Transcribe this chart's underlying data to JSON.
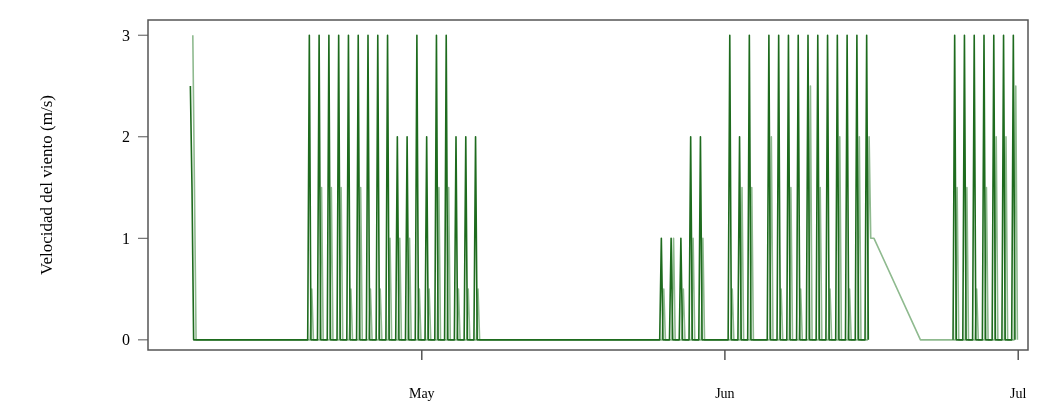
{
  "chart_data": {
    "type": "line",
    "ylabel": "Velocidad del viento (m/s)",
    "x": [
      "--04-07T08:00",
      "--04-07T12:00",
      "--04-07T16:00",
      "--04-19T08:00",
      "--04-19T12:00",
      "--04-19T16:00",
      "--04-20T08:00",
      "--04-20T12:00",
      "--04-20T16:00",
      "--04-21T08:00",
      "--04-21T12:00",
      "--04-21T16:00",
      "--04-22T08:00",
      "--04-22T12:00",
      "--04-22T16:00",
      "--04-23T08:00",
      "--04-23T12:00",
      "--04-23T16:00",
      "--04-24T08:00",
      "--04-24T12:00",
      "--04-24T16:00",
      "--04-25T08:00",
      "--04-25T12:00",
      "--04-25T16:00",
      "--04-26T08:00",
      "--04-26T12:00",
      "--04-26T16:00",
      "--04-27T08:00",
      "--04-27T12:00",
      "--04-27T16:00",
      "--04-28T08:00",
      "--04-28T12:00",
      "--04-28T16:00",
      "--04-29T08:00",
      "--04-29T12:00",
      "--04-29T16:00",
      "--04-30T08:00",
      "--04-30T12:00",
      "--04-30T16:00",
      "--05-01T08:00",
      "--05-01T12:00",
      "--05-01T16:00",
      "--05-02T08:00",
      "--05-02T12:00",
      "--05-02T16:00",
      "--05-03T08:00",
      "--05-03T12:00",
      "--05-03T16:00",
      "--05-04T08:00",
      "--05-04T12:00",
      "--05-04T16:00",
      "--05-05T08:00",
      "--05-05T12:00",
      "--05-05T16:00",
      "--05-06T08:00",
      "--05-06T12:00",
      "--05-06T16:00",
      "--05-25T08:00",
      "--05-25T12:00",
      "--05-25T16:00",
      "--05-26T08:00",
      "--05-26T12:00",
      "--05-26T16:00",
      "--05-27T08:00",
      "--05-27T12:00",
      "--05-27T16:00",
      "--05-28T08:00",
      "--05-28T12:00",
      "--05-28T16:00",
      "--05-29T08:00",
      "--05-29T12:00",
      "--05-29T16:00",
      "--06-01T08:00",
      "--06-01T12:00",
      "--06-01T16:00",
      "--06-02T08:00",
      "--06-02T12:00",
      "--06-02T16:00",
      "--06-03T08:00",
      "--06-03T12:00",
      "--06-03T16:00",
      "--06-05T08:00",
      "--06-05T12:00",
      "--06-05T16:00",
      "--06-06T08:00",
      "--06-06T12:00",
      "--06-06T16:00",
      "--06-07T08:00",
      "--06-07T12:00",
      "--06-07T16:00",
      "--06-08T08:00",
      "--06-08T12:00",
      "--06-08T16:00",
      "--06-09T08:00",
      "--06-09T12:00",
      "--06-09T16:00",
      "--06-10T08:00",
      "--06-10T12:00",
      "--06-10T16:00",
      "--06-11T08:00",
      "--06-11T12:00",
      "--06-11T16:00",
      "--06-12T08:00",
      "--06-12T12:00",
      "--06-12T16:00",
      "--06-13T08:00",
      "--06-13T12:00",
      "--06-13T16:00",
      "--06-14T08:00",
      "--06-14T12:00",
      "--06-14T16:00",
      "--06-15T08:00",
      "--06-15T12:00",
      "--06-15T16:00",
      "--06-16T00:00",
      "--06-21T00:00",
      "--06-24T08:00",
      "--06-24T12:00",
      "--06-24T16:00",
      "--06-25T08:00",
      "--06-25T12:00",
      "--06-25T16:00",
      "--06-26T08:00",
      "--06-26T12:00",
      "--06-26T16:00",
      "--06-27T08:00",
      "--06-27T12:00",
      "--06-27T16:00",
      "--06-28T08:00",
      "--06-28T12:00",
      "--06-28T16:00",
      "--06-29T08:00",
      "--06-29T12:00",
      "--06-29T16:00",
      "--06-30T08:00",
      "--06-30T12:00",
      "--06-30T16:00"
    ],
    "series": [
      {
        "color": "#8fba8f",
        "x": [
          "--04-07T14:00",
          "--04-07T18:00",
          "--04-07T22:00",
          "--04-19T14:00",
          "--04-19T18:00",
          "--04-19T22:00",
          "--04-20T14:00",
          "--04-20T18:00",
          "--04-20T22:00",
          "--04-21T14:00",
          "--04-21T18:00",
          "--04-21T22:00",
          "--04-22T14:00",
          "--04-22T18:00",
          "--04-22T22:00",
          "--04-23T14:00",
          "--04-23T18:00",
          "--04-23T22:00",
          "--04-24T14:00",
          "--04-24T18:00",
          "--04-24T22:00",
          "--04-25T14:00",
          "--04-25T18:00",
          "--04-25T22:00",
          "--04-26T14:00",
          "--04-26T18:00",
          "--04-26T22:00",
          "--04-27T14:00",
          "--04-27T18:00",
          "--04-27T22:00",
          "--04-28T14:00",
          "--04-28T18:00",
          "--04-28T22:00",
          "--04-29T14:00",
          "--04-29T18:00",
          "--04-29T22:00",
          "--04-30T14:00",
          "--04-30T18:00",
          "--04-30T22:00",
          "--05-01T14:00",
          "--05-01T18:00",
          "--05-01T22:00",
          "--05-02T14:00",
          "--05-02T18:00",
          "--05-02T22:00",
          "--05-03T14:00",
          "--05-03T18:00",
          "--05-03T22:00",
          "--05-04T14:00",
          "--05-04T18:00",
          "--05-04T22:00",
          "--05-05T14:00",
          "--05-05T18:00",
          "--05-05T22:00",
          "--05-06T14:00",
          "--05-06T18:00",
          "--05-06T22:00",
          "--05-25T14:00",
          "--05-25T18:00",
          "--05-25T22:00",
          "--05-26T14:00",
          "--05-26T18:00",
          "--05-26T22:00",
          "--05-27T14:00",
          "--05-27T18:00",
          "--05-27T22:00",
          "--05-28T14:00",
          "--05-28T18:00",
          "--05-28T22:00",
          "--05-29T14:00",
          "--05-29T18:00",
          "--05-29T22:00",
          "--06-01T14:00",
          "--06-01T18:00",
          "--06-01T22:00",
          "--06-02T14:00",
          "--06-02T18:00",
          "--06-02T22:00",
          "--06-03T14:00",
          "--06-03T18:00",
          "--06-03T22:00",
          "--06-05T14:00",
          "--06-05T18:00",
          "--06-05T22:00",
          "--06-06T14:00",
          "--06-06T18:00",
          "--06-06T22:00",
          "--06-07T14:00",
          "--06-07T18:00",
          "--06-07T22:00",
          "--06-08T14:00",
          "--06-08T18:00",
          "--06-08T22:00",
          "--06-09T14:00",
          "--06-09T18:00",
          "--06-09T22:00",
          "--06-10T14:00",
          "--06-10T18:00",
          "--06-10T22:00",
          "--06-11T14:00",
          "--06-11T18:00",
          "--06-11T22:00",
          "--06-12T14:00",
          "--06-12T18:00",
          "--06-12T22:00",
          "--06-13T14:00",
          "--06-13T18:00",
          "--06-13T22:00",
          "--06-14T14:00",
          "--06-14T18:00",
          "--06-14T22:00",
          "--06-15T14:00",
          "--06-15T18:00",
          "--06-15T22:00",
          "--06-16T06:00",
          "--06-21T00:00",
          "--06-24T14:00",
          "--06-24T18:00",
          "--06-24T22:00",
          "--06-25T14:00",
          "--06-25T18:00",
          "--06-25T22:00",
          "--06-26T14:00",
          "--06-26T18:00",
          "--06-26T22:00",
          "--06-27T14:00",
          "--06-27T18:00",
          "--06-27T22:00",
          "--06-28T14:00",
          "--06-28T18:00",
          "--06-28T22:00",
          "--06-29T14:00",
          "--06-29T18:00",
          "--06-29T22:00",
          "--06-30T14:00",
          "--06-30T18:00",
          "--06-30T22:00"
        ],
        "values": [
          3,
          1.5,
          0,
          0,
          0.5,
          0,
          0,
          1.5,
          0,
          0,
          1.5,
          0,
          0,
          1.5,
          0,
          0,
          0.5,
          0,
          0,
          1.5,
          0,
          0,
          0.5,
          0,
          0,
          0.5,
          0,
          0,
          1,
          0,
          0,
          1,
          0,
          0,
          1,
          0,
          0,
          0.5,
          0,
          0,
          0.5,
          0,
          0,
          1.5,
          0,
          0,
          1.5,
          0,
          0,
          0.5,
          0,
          0,
          0.5,
          0,
          0,
          0.5,
          0,
          0,
          0.5,
          0,
          0,
          1,
          0,
          0,
          0.5,
          0,
          0,
          1,
          0,
          0,
          1,
          0,
          0,
          0.5,
          0,
          0,
          1.5,
          0,
          0,
          1.5,
          0,
          0,
          2,
          0,
          0,
          0.5,
          0,
          0,
          1.5,
          0,
          0,
          0.5,
          0,
          0,
          2.5,
          0,
          0,
          1.5,
          0,
          0,
          0.5,
          0,
          0,
          2,
          0,
          0,
          0.5,
          0,
          0,
          2,
          0,
          0,
          2,
          1,
          1,
          0,
          0,
          1.5,
          0,
          0,
          1.5,
          0,
          0,
          0.5,
          0,
          0,
          1.5,
          0,
          0,
          2,
          0,
          0,
          2,
          0,
          0,
          2.5,
          0
        ]
      },
      {
        "color": "#1e6b1e",
        "values": [
          2.5,
          1.5,
          0,
          0,
          3,
          0,
          0,
          3,
          0,
          0,
          3,
          0,
          0,
          3,
          0,
          0,
          3,
          0,
          0,
          3,
          0,
          0,
          3,
          0,
          0,
          3,
          0,
          0,
          3,
          0,
          0,
          2,
          0,
          0,
          2,
          0,
          0,
          3,
          0,
          0,
          2,
          0,
          0,
          3,
          0,
          0,
          3,
          0,
          0,
          2,
          0,
          0,
          2,
          0,
          0,
          2,
          0,
          0,
          1,
          0,
          0,
          1,
          0,
          0,
          1,
          0,
          0,
          2,
          0,
          0,
          2,
          0,
          0,
          3,
          0,
          0,
          2,
          0,
          0,
          3,
          0,
          0,
          3,
          0,
          0,
          3,
          0,
          0,
          3,
          0,
          0,
          3,
          0,
          0,
          3,
          0,
          0,
          3,
          0,
          0,
          3,
          0,
          0,
          3,
          0,
          0,
          3,
          0,
          0,
          3,
          0,
          0,
          3,
          0,
          null,
          null,
          0,
          3,
          0,
          0,
          3,
          0,
          0,
          3,
          0,
          0,
          3,
          0,
          0,
          3,
          0,
          0,
          3,
          0,
          0,
          3,
          0
        ]
      }
    ],
    "xlim": [
      "--04-03",
      "--07-02"
    ],
    "xticks": [
      {
        "value": "--05-01",
        "label": "May"
      },
      {
        "value": "--06-01",
        "label": "Jun"
      },
      {
        "value": "--07-01",
        "label": "Jul"
      }
    ],
    "ylim": [
      -0.1,
      3.15
    ],
    "yticks": [
      0,
      1,
      2,
      3
    ],
    "grid": false
  }
}
